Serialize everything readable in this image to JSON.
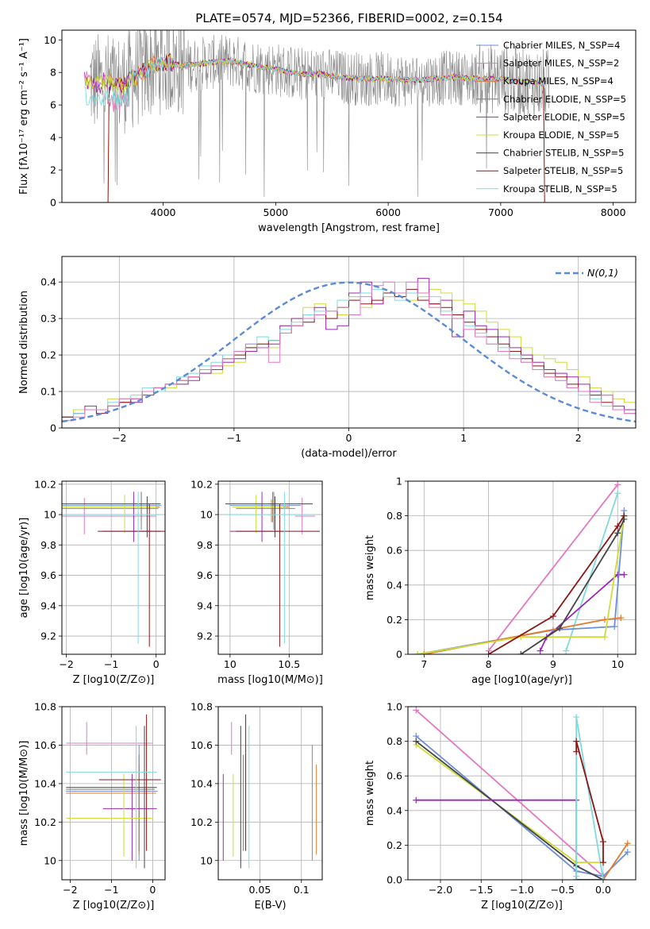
{
  "title": "PLATE=0574, MJD=52366, FIBERID=0002, z=0.154",
  "colors": {
    "c_miles": "#6b8ed8",
    "s_miles": "#e377c2",
    "k_miles": "#e07b2a",
    "c_elodie": "#7f7f7f",
    "s_elodie": "#9b27b8",
    "k_elodie": "#cddc39",
    "c_stelib": "#444444",
    "s_stelib": "#8b1414",
    "k_stelib": "#7fdbdb"
  },
  "chart_data": [
    {
      "id": "spectrum",
      "type": "line",
      "xlabel": "wavelength [Angstrom, rest frame]",
      "ylabel": "Flux [fλ10⁻¹⁷ erg cm⁻² s⁻¹ A⁻¹]",
      "xlim": [
        3100,
        8200
      ],
      "ylim": [
        0,
        10.6
      ],
      "xticks": [
        4000,
        5000,
        6000,
        7000,
        8000
      ],
      "yticks": [
        0,
        2,
        4,
        6,
        8,
        10
      ],
      "grid": false,
      "legend_position": "right",
      "legend": [
        {
          "key": "c_miles",
          "label": "Chabrier MILES, N_SSP=4"
        },
        {
          "key": "s_miles",
          "label": "Salpeter MILES, N_SSP=2"
        },
        {
          "key": "k_miles",
          "label": "Kroupa MILES, N_SSP=4"
        },
        {
          "key": "c_elodie",
          "label": "Chabrier ELODIE, N_SSP=5"
        },
        {
          "key": "s_elodie",
          "label": "Salpeter ELODIE, N_SSP=5"
        },
        {
          "key": "k_elodie",
          "label": "Kroupa ELODIE, N_SSP=5"
        },
        {
          "key": "c_stelib",
          "label": "Chabrier STELIB, N_SSP=5"
        },
        {
          "key": "s_stelib",
          "label": "Salpeter STELIB, N_SSP=5"
        },
        {
          "key": "k_stelib",
          "label": "Kroupa STELIB, N_SSP=5"
        }
      ],
      "model_continuum": {
        "x": [
          3300,
          3400,
          3500,
          3600,
          3700,
          3800,
          3900,
          4000,
          4100,
          4200,
          4400,
          4600,
          4800,
          5000,
          5200,
          5400,
          5600,
          5800,
          6000,
          6200,
          6400,
          6600,
          6800,
          7000,
          7200,
          7400
        ],
        "y": [
          7.6,
          7.3,
          7.4,
          7.2,
          7.5,
          7.9,
          8.4,
          8.6,
          8.5,
          8.4,
          8.6,
          8.7,
          8.4,
          8.2,
          7.9,
          7.9,
          7.7,
          7.6,
          7.6,
          7.5,
          7.6,
          7.7,
          7.6,
          7.6,
          7.4,
          7.3
        ]
      }
    },
    {
      "id": "residuals",
      "type": "line",
      "xlabel": "(data-model)/error",
      "ylabel": "Normed distribution",
      "xlim": [
        -2.5,
        2.5
      ],
      "ylim": [
        0,
        0.47
      ],
      "xticks": [
        -2,
        -1,
        0,
        1,
        2
      ],
      "yticks": [
        0.0,
        0.1,
        0.2,
        0.3,
        0.4
      ],
      "grid": true,
      "legend_position": "top-right",
      "legend_label": "N(0,1)",
      "gaussian": {
        "mean": 0,
        "sigma": 1
      },
      "bin_width": 0.1,
      "histograms": {
        "k_elodie": [
          0.03,
          0.05,
          0.05,
          0.05,
          0.08,
          0.08,
          0.07,
          0.1,
          0.1,
          0.11,
          0.12,
          0.14,
          0.15,
          0.15,
          0.17,
          0.18,
          0.22,
          0.23,
          0.22,
          0.28,
          0.3,
          0.33,
          0.34,
          0.32,
          0.31,
          0.36,
          0.33,
          0.34,
          0.36,
          0.37,
          0.35,
          0.36,
          0.38,
          0.37,
          0.35,
          0.34,
          0.32,
          0.29,
          0.27,
          0.25,
          0.22,
          0.2,
          0.19,
          0.18,
          0.16,
          0.14,
          0.11,
          0.1,
          0.08,
          0.07
        ],
        "s_elodie": [
          0.03,
          0.04,
          0.06,
          0.05,
          0.06,
          0.07,
          0.07,
          0.09,
          0.1,
          0.12,
          0.12,
          0.13,
          0.15,
          0.16,
          0.18,
          0.19,
          0.21,
          0.22,
          0.23,
          0.28,
          0.3,
          0.31,
          0.33,
          0.27,
          0.28,
          0.37,
          0.4,
          0.34,
          0.37,
          0.36,
          0.37,
          0.41,
          0.34,
          0.35,
          0.25,
          0.32,
          0.28,
          0.27,
          0.25,
          0.22,
          0.2,
          0.18,
          0.16,
          0.15,
          0.14,
          0.12,
          0.1,
          0.09,
          0.06,
          0.05
        ],
        "s_stelib": [
          0.03,
          0.04,
          0.05,
          0.04,
          0.06,
          0.07,
          0.08,
          0.1,
          0.11,
          0.12,
          0.13,
          0.14,
          0.16,
          0.17,
          0.19,
          0.2,
          0.22,
          0.23,
          0.24,
          0.26,
          0.28,
          0.29,
          0.31,
          0.3,
          0.33,
          0.35,
          0.34,
          0.35,
          0.37,
          0.36,
          0.38,
          0.35,
          0.34,
          0.33,
          0.31,
          0.29,
          0.27,
          0.25,
          0.23,
          0.21,
          0.19,
          0.17,
          0.15,
          0.14,
          0.12,
          0.1,
          0.09,
          0.07,
          0.05,
          0.04
        ],
        "k_stelib": [
          0.02,
          0.04,
          0.05,
          0.05,
          0.07,
          0.08,
          0.09,
          0.11,
          0.1,
          0.12,
          0.14,
          0.15,
          0.17,
          0.18,
          0.2,
          0.21,
          0.23,
          0.25,
          0.24,
          0.27,
          0.29,
          0.31,
          0.32,
          0.32,
          0.35,
          0.36,
          0.37,
          0.38,
          0.36,
          0.35,
          0.37,
          0.36,
          0.36,
          0.32,
          0.3,
          0.28,
          0.26,
          0.23,
          0.22,
          0.2,
          0.18,
          0.16,
          0.14,
          0.13,
          0.11,
          0.09,
          0.08,
          0.06,
          0.05,
          0.04
        ],
        "s_miles": [
          0.02,
          0.03,
          0.05,
          0.05,
          0.06,
          0.08,
          0.08,
          0.1,
          0.11,
          0.12,
          0.13,
          0.14,
          0.16,
          0.17,
          0.19,
          0.21,
          0.23,
          0.22,
          0.18,
          0.26,
          0.28,
          0.3,
          0.31,
          0.32,
          0.33,
          0.31,
          0.36,
          0.39,
          0.4,
          0.37,
          0.4,
          0.37,
          0.33,
          0.31,
          0.3,
          0.27,
          0.25,
          0.23,
          0.21,
          0.19,
          0.18,
          0.16,
          0.14,
          0.13,
          0.11,
          0.1,
          0.07,
          0.09,
          0.05,
          0.04
        ]
      }
    },
    {
      "id": "age_vs_Z",
      "type": "scatter",
      "xlabel": "Z [log10(Z/Z⊙)]",
      "ylabel": "age  [log10(age/yr)]",
      "xlim": [
        -2.1,
        0.2
      ],
      "ylim": [
        9.08,
        10.22
      ],
      "xticks": [
        -2,
        -1,
        0
      ],
      "yticks": [
        9.2,
        9.4,
        9.6,
        9.8,
        10.0,
        10.2
      ],
      "grid": true
    },
    {
      "id": "age_vs_mass",
      "type": "scatter",
      "xlabel": "mass [log10(M/M⊙)]",
      "ylabel": "",
      "xlim": [
        9.9,
        10.78
      ],
      "ylim": [
        9.08,
        10.22
      ],
      "xticks": [
        10.0,
        10.5
      ],
      "yticks": [
        9.2,
        9.4,
        9.6,
        9.8,
        10.0,
        10.2
      ],
      "grid": true
    },
    {
      "id": "weight_vs_age",
      "type": "line",
      "xlabel": "age  [log10(age/yr)]",
      "ylabel": "mass weight",
      "xlim": [
        6.75,
        10.28
      ],
      "ylim": [
        0,
        1
      ],
      "xticks": [
        7,
        8,
        9,
        10
      ],
      "yticks": [
        0.0,
        0.2,
        0.4,
        0.6,
        0.8,
        1.0
      ],
      "grid": true,
      "series": [
        {
          "key": "s_miles",
          "x": [
            8.0,
            10.0
          ],
          "y": [
            0.02,
            0.98
          ]
        },
        {
          "key": "k_stelib",
          "x": [
            9.2,
            10.0
          ],
          "y": [
            0.02,
            0.93
          ]
        },
        {
          "key": "s_elodie",
          "x": [
            8.8,
            8.9,
            10.0,
            10.1
          ],
          "y": [
            0.02,
            0.1,
            0.46,
            0.46
          ]
        },
        {
          "key": "c_miles",
          "x": [
            6.9,
            9.0,
            9.95,
            10.1
          ],
          "y": [
            0.0,
            0.14,
            0.16,
            0.83
          ]
        },
        {
          "key": "k_miles",
          "x": [
            7.0,
            9.8,
            10.05
          ],
          "y": [
            0.0,
            0.2,
            0.21
          ]
        },
        {
          "key": "k_elodie",
          "x": [
            6.9,
            8.5,
            9.8,
            10.1
          ],
          "y": [
            0.0,
            0.1,
            0.1,
            0.8
          ]
        },
        {
          "key": "s_stelib",
          "x": [
            8.0,
            9.0,
            10.0,
            10.1
          ],
          "y": [
            0.0,
            0.22,
            0.74,
            0.8
          ]
        },
        {
          "key": "c_stelib",
          "x": [
            8.5,
            9.1,
            10.0,
            10.1
          ],
          "y": [
            0.0,
            0.15,
            0.7,
            0.78
          ]
        }
      ]
    },
    {
      "id": "mass_vs_Z",
      "type": "scatter",
      "xlabel": "Z [log10(Z/Z⊙)]",
      "ylabel": "mass [log10(M/M⊙)]",
      "xlim": [
        -2.2,
        0.3
      ],
      "ylim": [
        9.9,
        10.8
      ],
      "xticks": [
        -2,
        -1,
        0
      ],
      "yticks": [
        10.0,
        10.2,
        10.4,
        10.6,
        10.8
      ],
      "grid": true
    },
    {
      "id": "mass_vs_ebv",
      "type": "scatter",
      "xlabel": "E(B-V)",
      "ylabel": "",
      "xlim": [
        0.0,
        0.125
      ],
      "ylim": [
        9.9,
        10.8
      ],
      "xticks": [
        0.05,
        0.1
      ],
      "yticks": [
        10.0,
        10.2,
        10.4,
        10.6,
        10.8
      ],
      "grid": true
    },
    {
      "id": "weight_vs_Z",
      "type": "line",
      "xlabel": "Z [log10(Z/Z⊙)]",
      "ylabel": "mass weight",
      "xlim": [
        -2.4,
        0.4
      ],
      "ylim": [
        0,
        1
      ],
      "xticks": [
        -2.0,
        -1.5,
        -1.0,
        -0.5,
        0.0
      ],
      "yticks": [
        0.0,
        0.2,
        0.4,
        0.6,
        0.8,
        1.0
      ],
      "grid": true,
      "series": [
        {
          "key": "s_miles",
          "x": [
            -2.3,
            0.0
          ],
          "y": [
            0.98,
            0.02
          ]
        },
        {
          "key": "c_miles",
          "x": [
            -2.3,
            -0.33,
            0.0,
            0.3
          ],
          "y": [
            0.83,
            0.05,
            0.02,
            0.16
          ]
        },
        {
          "key": "k_miles",
          "x": [
            -0.33,
            0.0,
            0.3
          ],
          "y": [
            0.0,
            0.0,
            0.21
          ]
        },
        {
          "key": "k_elodie",
          "x": [
            -2.3,
            -0.33,
            0.0
          ],
          "y": [
            0.78,
            0.1,
            0.1
          ]
        },
        {
          "key": "c_stelib",
          "x": [
            -2.3,
            -0.33,
            0.0
          ],
          "y": [
            0.8,
            0.08,
            0.0
          ]
        },
        {
          "key": "s_elodie",
          "x": [
            -2.3,
            -0.33,
            -0.33,
            0.0
          ],
          "y": [
            0.46,
            0.46,
            0.0,
            0.0
          ]
        },
        {
          "key": "k_stelib",
          "x": [
            -0.33,
            -0.33,
            0.0
          ],
          "y": [
            0.02,
            0.94,
            0.0
          ]
        },
        {
          "key": "s_stelib",
          "x": [
            -0.33,
            -0.33,
            0.0,
            0.0
          ],
          "y": [
            0.74,
            0.8,
            0.22,
            0.1
          ]
        }
      ]
    }
  ],
  "ssp_points": [
    {
      "key": "c_miles",
      "Z": -0.33,
      "Zlo": -2.1,
      "Zhi": 0.12,
      "age": 10.06,
      "alo": 9.95,
      "ahi": 10.15,
      "mass": 10.36,
      "mlo": 10.0,
      "mhi": 10.6,
      "ebv": 0.113
    },
    {
      "key": "s_miles",
      "Z": -1.6,
      "Zlo": -2.1,
      "Zhi": 0.0,
      "age": 9.99,
      "alo": 9.87,
      "ahi": 10.11,
      "mass": 10.61,
      "mlo": 10.55,
      "mhi": 10.72,
      "ebv": 0.016
    },
    {
      "key": "k_miles",
      "Z": -0.33,
      "Zlo": -2.1,
      "Zhi": 0.08,
      "age": 10.05,
      "alo": 9.95,
      "ahi": 10.1,
      "mass": 10.35,
      "mlo": 10.03,
      "mhi": 10.5,
      "ebv": 0.118
    },
    {
      "key": "c_elodie",
      "Z": -0.33,
      "Zlo": -2.1,
      "Zhi": 0.05,
      "age": 10.04,
      "alo": 9.9,
      "ahi": 10.15,
      "mass": 10.37,
      "mlo": 10.05,
      "mhi": 10.55,
      "ebv": 0.03
    },
    {
      "key": "s_elodie",
      "Z": -0.5,
      "Zlo": -1.2,
      "Zhi": 0.1,
      "age": 9.89,
      "alo": 9.82,
      "ahi": 10.15,
      "mass": 10.27,
      "mlo": 10.0,
      "mhi": 10.45,
      "ebv": 0.006
    },
    {
      "key": "k_elodie",
      "Z": -0.7,
      "Zlo": -2.1,
      "Zhi": 0.0,
      "age": 10.05,
      "alo": 9.88,
      "ahi": 10.13,
      "mass": 10.22,
      "mlo": 10.02,
      "mhi": 10.45,
      "ebv": 0.018
    },
    {
      "key": "c_stelib",
      "Z": -0.2,
      "Zlo": -2.1,
      "Zhi": 0.1,
      "age": 10.07,
      "alo": 9.85,
      "ahi": 10.12,
      "mass": 10.38,
      "mlo": 9.96,
      "mhi": 10.7,
      "ebv": 0.027
    },
    {
      "key": "s_stelib",
      "Z": -0.15,
      "Zlo": -1.3,
      "Zhi": 0.2,
      "age": 9.89,
      "alo": 9.13,
      "ahi": 10.07,
      "mass": 10.42,
      "mlo": 10.05,
      "mhi": 10.76,
      "ebv": 0.033
    },
    {
      "key": "k_stelib",
      "Z": -0.4,
      "Zlo": -2.1,
      "Zhi": 0.1,
      "age": 10.0,
      "alo": 9.15,
      "ahi": 10.15,
      "mass": 10.46,
      "mlo": 9.96,
      "mhi": 10.7,
      "ebv": 0.037
    }
  ]
}
